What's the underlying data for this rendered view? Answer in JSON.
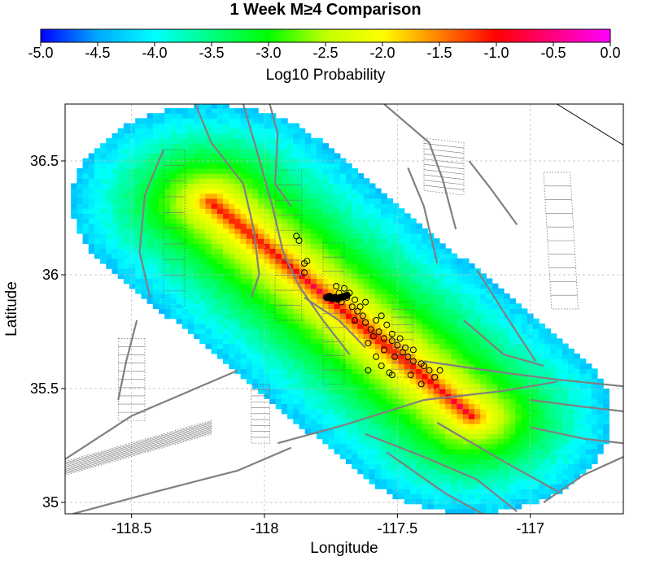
{
  "title": "1 Week M≥4 Comparison",
  "colorbar": {
    "label": "Log10 Probability",
    "ticks": [
      "-5.0",
      "-4.5",
      "-4.0",
      "-3.5",
      "-3.0",
      "-2.5",
      "-2.0",
      "-1.5",
      "-1.0",
      "-0.5",
      "0.0"
    ],
    "range": [
      -5.0,
      0.0
    ],
    "stops": [
      "#0000ff",
      "#00a8ff",
      "#00ffff",
      "#00ff80",
      "#00ff00",
      "#bfff00",
      "#ffff00",
      "#ff8000",
      "#ff0000",
      "#ff0080",
      "#ff00ff"
    ]
  },
  "map": {
    "xlabel": "Longitude",
    "ylabel": "Latitude",
    "xlim": [
      -118.75,
      -116.65
    ],
    "ylim": [
      34.95,
      36.75
    ],
    "xticks": [
      "-118.5",
      "-118",
      "-117.5",
      "-117"
    ],
    "yticks": [
      "36.5",
      "36",
      "35.5",
      "35"
    ],
    "grid": true,
    "probability_field": {
      "axis_start": [
        -118.2,
        36.32
      ],
      "axis_end": [
        -117.22,
        35.38
      ],
      "halfwidth_deg": 0.5,
      "peak_log10": -0.6,
      "edge_log10": -4.3
    },
    "earthquakes": [
      [
        -117.88,
        36.17
      ],
      [
        -117.87,
        36.15
      ],
      [
        -117.85,
        36.05
      ],
      [
        -117.84,
        36.06
      ],
      [
        -117.85,
        36.01
      ],
      [
        -117.73,
        35.95
      ],
      [
        -117.7,
        35.94
      ],
      [
        -117.68,
        35.92
      ],
      [
        -117.72,
        35.92
      ],
      [
        -117.66,
        35.89
      ],
      [
        -117.64,
        35.86
      ],
      [
        -117.62,
        35.88
      ],
      [
        -117.67,
        35.86
      ],
      [
        -117.65,
        35.84
      ],
      [
        -117.63,
        35.82
      ],
      [
        -117.66,
        35.8
      ],
      [
        -117.62,
        35.79
      ],
      [
        -117.58,
        35.8
      ],
      [
        -117.6,
        35.76
      ],
      [
        -117.57,
        35.75
      ],
      [
        -117.59,
        35.73
      ],
      [
        -117.55,
        35.72
      ],
      [
        -117.52,
        35.71
      ],
      [
        -117.5,
        35.69
      ],
      [
        -117.48,
        35.66
      ],
      [
        -117.46,
        35.64
      ],
      [
        -117.44,
        35.62
      ],
      [
        -117.41,
        35.61
      ],
      [
        -117.51,
        35.64
      ],
      [
        -117.55,
        35.67
      ],
      [
        -117.47,
        35.68
      ],
      [
        -117.44,
        35.67
      ],
      [
        -117.49,
        35.72
      ],
      [
        -117.52,
        35.74
      ],
      [
        -117.56,
        35.6
      ],
      [
        -117.53,
        35.57
      ],
      [
        -117.52,
        35.56
      ],
      [
        -117.58,
        35.64
      ],
      [
        -117.61,
        35.58
      ],
      [
        -117.38,
        35.58
      ],
      [
        -117.36,
        35.55
      ],
      [
        -117.41,
        35.52
      ],
      [
        -117.45,
        35.56
      ],
      [
        -117.34,
        35.58
      ],
      [
        -117.4,
        35.6
      ],
      [
        -117.54,
        35.78
      ],
      [
        -117.56,
        35.82
      ],
      [
        -117.69,
        35.9
      ],
      [
        -117.71,
        35.88
      ],
      [
        -117.61,
        35.7
      ]
    ],
    "cluster": [
      [
        -117.755,
        35.905
      ],
      [
        -117.745,
        35.895
      ],
      [
        -117.735,
        35.9
      ],
      [
        -117.725,
        35.893
      ],
      [
        -117.715,
        35.9
      ],
      [
        -117.7,
        35.905
      ],
      [
        -117.69,
        35.91
      ],
      [
        -117.765,
        35.9
      ]
    ],
    "faults": [
      [
        [
          -118.08,
          36.75
        ],
        [
          -118.03,
          36.55
        ],
        [
          -117.97,
          36.3
        ],
        [
          -117.93,
          36.1
        ],
        [
          -117.87,
          35.95
        ],
        [
          -117.78,
          35.8
        ],
        [
          -117.68,
          35.65
        ]
      ],
      [
        [
          -118.26,
          36.75
        ],
        [
          -118.2,
          36.58
        ],
        [
          -118.08,
          36.4
        ],
        [
          -118.04,
          36.2
        ],
        [
          -118.02,
          36.0
        ],
        [
          -118.05,
          35.9
        ]
      ],
      [
        [
          -117.98,
          36.75
        ],
        [
          -117.95,
          36.62
        ],
        [
          -117.96,
          36.4
        ],
        [
          -117.9,
          36.3
        ]
      ],
      [
        [
          -118.38,
          36.55
        ],
        [
          -118.45,
          36.35
        ],
        [
          -118.47,
          36.1
        ],
        [
          -118.43,
          35.9
        ]
      ],
      [
        [
          -118.48,
          35.8
        ],
        [
          -118.52,
          35.62
        ],
        [
          -118.55,
          35.45
        ]
      ],
      [
        [
          -118.1,
          35.58
        ],
        [
          -118.3,
          35.48
        ],
        [
          -118.5,
          35.38
        ],
        [
          -118.75,
          35.19
        ]
      ],
      [
        [
          -117.4,
          35.62
        ],
        [
          -117.1,
          35.57
        ],
        [
          -116.9,
          35.54
        ],
        [
          -116.65,
          35.51
        ]
      ],
      [
        [
          -117.95,
          35.26
        ],
        [
          -117.7,
          35.34
        ],
        [
          -117.4,
          35.45
        ],
        [
          -117.1,
          35.49
        ],
        [
          -116.9,
          35.53
        ]
      ],
      [
        [
          -118.72,
          34.95
        ],
        [
          -118.4,
          35.05
        ],
        [
          -118.1,
          35.14
        ],
        [
          -117.9,
          35.24
        ]
      ],
      [
        [
          -117.62,
          35.3
        ],
        [
          -117.4,
          35.2
        ],
        [
          -117.2,
          35.1
        ],
        [
          -117.05,
          34.96
        ]
      ],
      [
        [
          -117.54,
          35.22
        ],
        [
          -117.32,
          35.04
        ],
        [
          -117.18,
          34.95
        ]
      ],
      [
        [
          -117.35,
          35.35
        ],
        [
          -117.1,
          35.18
        ],
        [
          -116.9,
          35.05
        ]
      ],
      [
        [
          -117.25,
          35.8
        ],
        [
          -117.1,
          35.65
        ],
        [
          -116.95,
          35.6
        ]
      ],
      [
        [
          -117.2,
          36.02
        ],
        [
          -117.08,
          35.8
        ],
        [
          -116.98,
          35.62
        ]
      ],
      [
        [
          -117.55,
          36.75
        ],
        [
          -117.38,
          36.58
        ],
        [
          -117.33,
          36.42
        ],
        [
          -117.28,
          36.2
        ]
      ],
      [
        [
          -117.46,
          36.47
        ],
        [
          -117.4,
          36.3
        ],
        [
          -117.35,
          36.05
        ]
      ],
      [
        [
          -117.23,
          36.5
        ],
        [
          -117.15,
          36.38
        ],
        [
          -117.05,
          36.22
        ]
      ],
      [
        [
          -117.0,
          35.45
        ],
        [
          -116.8,
          35.42
        ],
        [
          -116.65,
          35.4
        ]
      ],
      [
        [
          -117.0,
          35.33
        ],
        [
          -116.8,
          35.28
        ],
        [
          -116.65,
          35.26
        ]
      ],
      [
        [
          -116.95,
          35.0
        ],
        [
          -116.8,
          35.12
        ],
        [
          -116.65,
          35.2
        ]
      ],
      [
        [
          -117.85,
          35.9
        ],
        [
          -117.72,
          35.8
        ],
        [
          -117.62,
          35.68
        ]
      ]
    ],
    "dotted_blocks": [
      [
        [
          -118.38,
          36.55
        ],
        [
          -118.3,
          36.55
        ],
        [
          -118.3,
          35.86
        ],
        [
          -118.38,
          35.86
        ]
      ],
      [
        [
          -117.78,
          36.14
        ],
        [
          -117.7,
          36.14
        ],
        [
          -117.7,
          35.52
        ],
        [
          -117.78,
          35.52
        ]
      ],
      [
        [
          -117.96,
          36.46
        ],
        [
          -117.86,
          36.46
        ],
        [
          -117.86,
          35.8
        ],
        [
          -117.96,
          35.8
        ]
      ],
      [
        [
          -117.52,
          35.88
        ],
        [
          -117.44,
          35.88
        ],
        [
          -117.44,
          35.55
        ],
        [
          -117.52,
          35.55
        ]
      ],
      [
        [
          -117.4,
          36.6
        ],
        [
          -117.25,
          36.58
        ],
        [
          -117.25,
          36.35
        ],
        [
          -117.4,
          36.37
        ]
      ],
      [
        [
          -116.95,
          36.45
        ],
        [
          -116.85,
          36.45
        ],
        [
          -116.82,
          35.85
        ],
        [
          -116.92,
          35.85
        ]
      ],
      [
        [
          -118.55,
          35.72
        ],
        [
          -118.45,
          35.72
        ],
        [
          -118.45,
          35.36
        ],
        [
          -118.55,
          35.36
        ]
      ],
      [
        [
          -118.05,
          35.52
        ],
        [
          -117.98,
          35.52
        ],
        [
          -117.98,
          35.26
        ],
        [
          -118.05,
          35.26
        ]
      ],
      [
        [
          -118.75,
          35.12
        ],
        [
          -118.2,
          35.3
        ],
        [
          -118.2,
          35.36
        ],
        [
          -118.75,
          35.18
        ]
      ]
    ],
    "border_line": [
      [
        -116.9,
        36.75
      ],
      [
        -116.65,
        36.57
      ]
    ]
  }
}
